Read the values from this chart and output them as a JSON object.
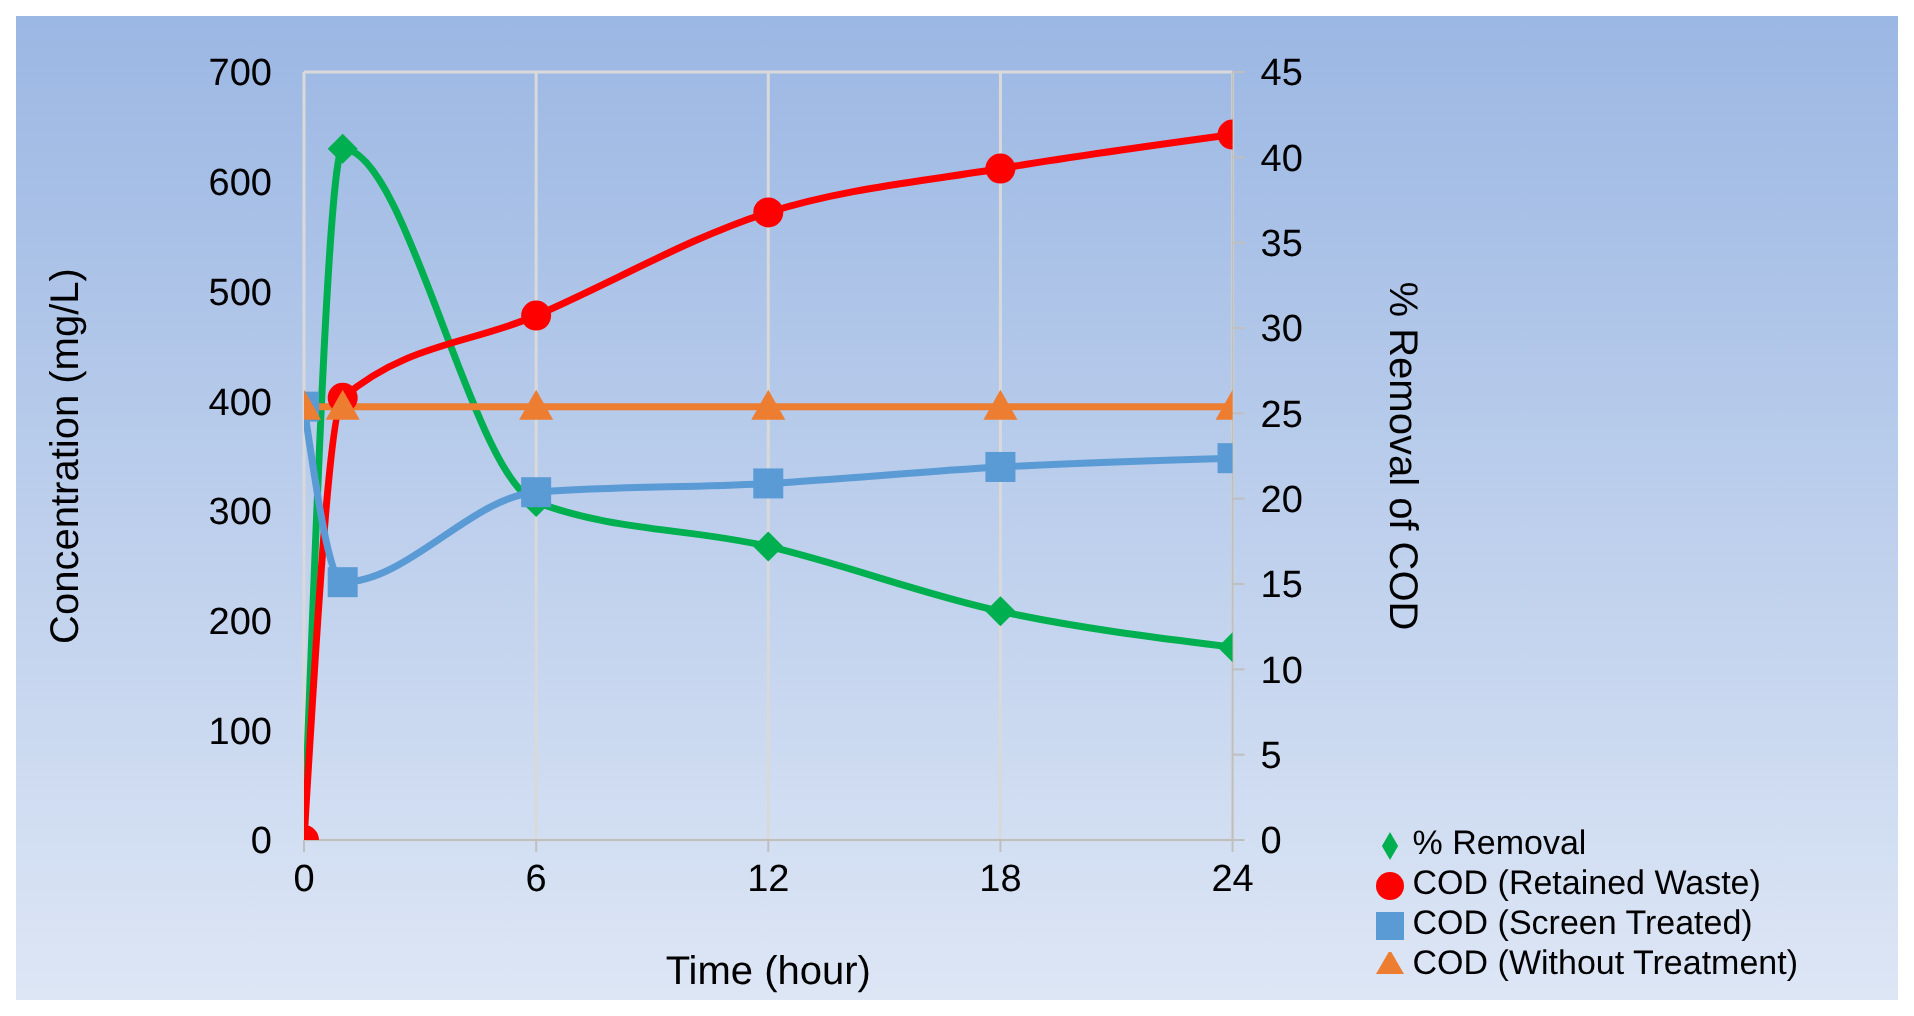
{
  "chart_data": {
    "type": "line",
    "xlabel": "Time (hour)",
    "ylabel": "Concentration (mg/L)",
    "y2label": "% Removal of COD",
    "x": [
      0,
      1,
      6,
      12,
      18,
      24
    ],
    "series": [
      {
        "name": "COD (Without Treatment)",
        "color": "#ed7d31",
        "marker": "triangle",
        "values": [
          395,
          395,
          395,
          395,
          395,
          395
        ]
      },
      {
        "name": "COD (Screen Treated)",
        "color": "#5b9bd5",
        "marker": "square",
        "values": [
          395,
          235,
          317,
          325,
          340,
          348
        ]
      },
      {
        "name": "COD (Retained Waste)",
        "color": "#ff0000",
        "marker": "circle",
        "values": [
          0,
          403,
          478,
          572,
          612,
          643
        ]
      },
      {
        "name": "% Removal",
        "color": "#00b050",
        "marker": "diamond",
        "axis": "y2",
        "values": [
          0,
          40.5,
          19.8,
          17.2,
          13.4,
          11.3
        ]
      }
    ],
    "xlim": [
      0,
      24
    ],
    "xticks": [
      0,
      6,
      12,
      18,
      24
    ],
    "ylim": [
      0,
      700
    ],
    "yticks": [
      0,
      100,
      200,
      300,
      400,
      500,
      600,
      700
    ],
    "y2lim": [
      0,
      45
    ],
    "y2ticks": [
      0,
      5,
      10,
      15,
      20,
      25,
      30,
      35,
      40,
      45
    ],
    "grid": true,
    "legend": "bottom right"
  }
}
